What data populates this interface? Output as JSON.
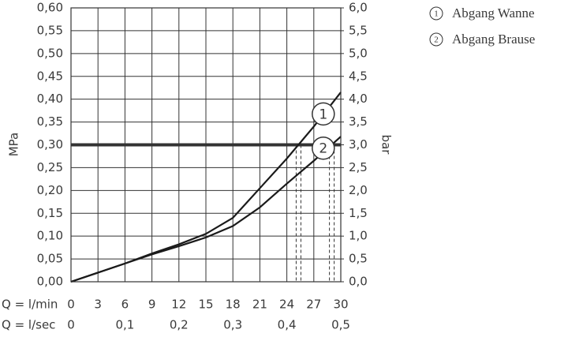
{
  "chart_data": {
    "type": "line",
    "y_label": "MPa",
    "y2_label": "bar",
    "x_label": "Q = l/min",
    "x2_label": "Q = l/sec",
    "x": [
      0,
      3,
      6,
      9,
      12,
      15,
      18,
      21,
      24,
      27,
      30
    ],
    "series": [
      {
        "name": "Abgang Wanne",
        "label": "1",
        "color": "#1a1a1a",
        "values": [
          0,
          0.02,
          0.04,
          0.062,
          0.082,
          0.105,
          0.14,
          0.205,
          0.27,
          0.34,
          0.415
        ]
      },
      {
        "name": "Abgang Brause",
        "label": "2",
        "color": "#1a1a1a",
        "values": [
          0,
          0.02,
          0.04,
          0.06,
          0.078,
          0.097,
          0.122,
          0.163,
          0.215,
          0.265,
          0.318
        ]
      }
    ],
    "hline": 0.3,
    "vlines": [
      25.3,
      29
    ],
    "xlim": [
      0,
      30
    ],
    "xticks": [
      0,
      3,
      6,
      9,
      12,
      15,
      18,
      21,
      24,
      27,
      30
    ],
    "x2lim": [
      0,
      0.5
    ],
    "x2ticks": [
      0,
      {
        "value": 0.1,
        "label": "0,1"
      },
      {
        "value": 0.2,
        "label": "0,2"
      },
      {
        "value": 0.3,
        "label": "0,3"
      },
      {
        "value": 0.4,
        "label": "0,4"
      },
      {
        "value": 0.5,
        "label": "0,5"
      }
    ],
    "ylim": [
      0,
      0.6
    ],
    "yticks": [
      {
        "value": 0,
        "label": "0,00"
      },
      {
        "value": 0.05,
        "label": "0,05"
      },
      {
        "value": 0.1,
        "label": "0,10"
      },
      {
        "value": 0.15,
        "label": "0,15"
      },
      {
        "value": 0.2,
        "label": "0,20"
      },
      {
        "value": 0.25,
        "label": "0,25"
      },
      {
        "value": 0.3,
        "label": "0,30"
      },
      {
        "value": 0.35,
        "label": "0,35"
      },
      {
        "value": 0.4,
        "label": "0,40"
      },
      {
        "value": 0.45,
        "label": "0,45"
      },
      {
        "value": 0.5,
        "label": "0,50"
      },
      {
        "value": 0.55,
        "label": "0,55"
      },
      {
        "value": 0.6,
        "label": "0,60"
      }
    ],
    "y2lim": [
      0,
      6
    ],
    "y2ticks": [
      {
        "value": 0,
        "label": "0,0"
      },
      {
        "value": 0.5,
        "label": "0,5"
      },
      {
        "value": 1,
        "label": "1,0"
      },
      {
        "value": 1.5,
        "label": "1,5"
      },
      {
        "value": 2,
        "label": "2,0"
      },
      {
        "value": 2.5,
        "label": "2,5"
      },
      {
        "value": 3,
        "label": "3,0"
      },
      {
        "value": 3.5,
        "label": "3,5"
      },
      {
        "value": 4,
        "label": "4,0"
      },
      {
        "value": 4.5,
        "label": "4,5"
      },
      {
        "value": 5,
        "label": "5,0"
      },
      {
        "value": 5.5,
        "label": "5,5"
      },
      {
        "value": 6,
        "label": "6,0"
      }
    ],
    "grid": true
  }
}
